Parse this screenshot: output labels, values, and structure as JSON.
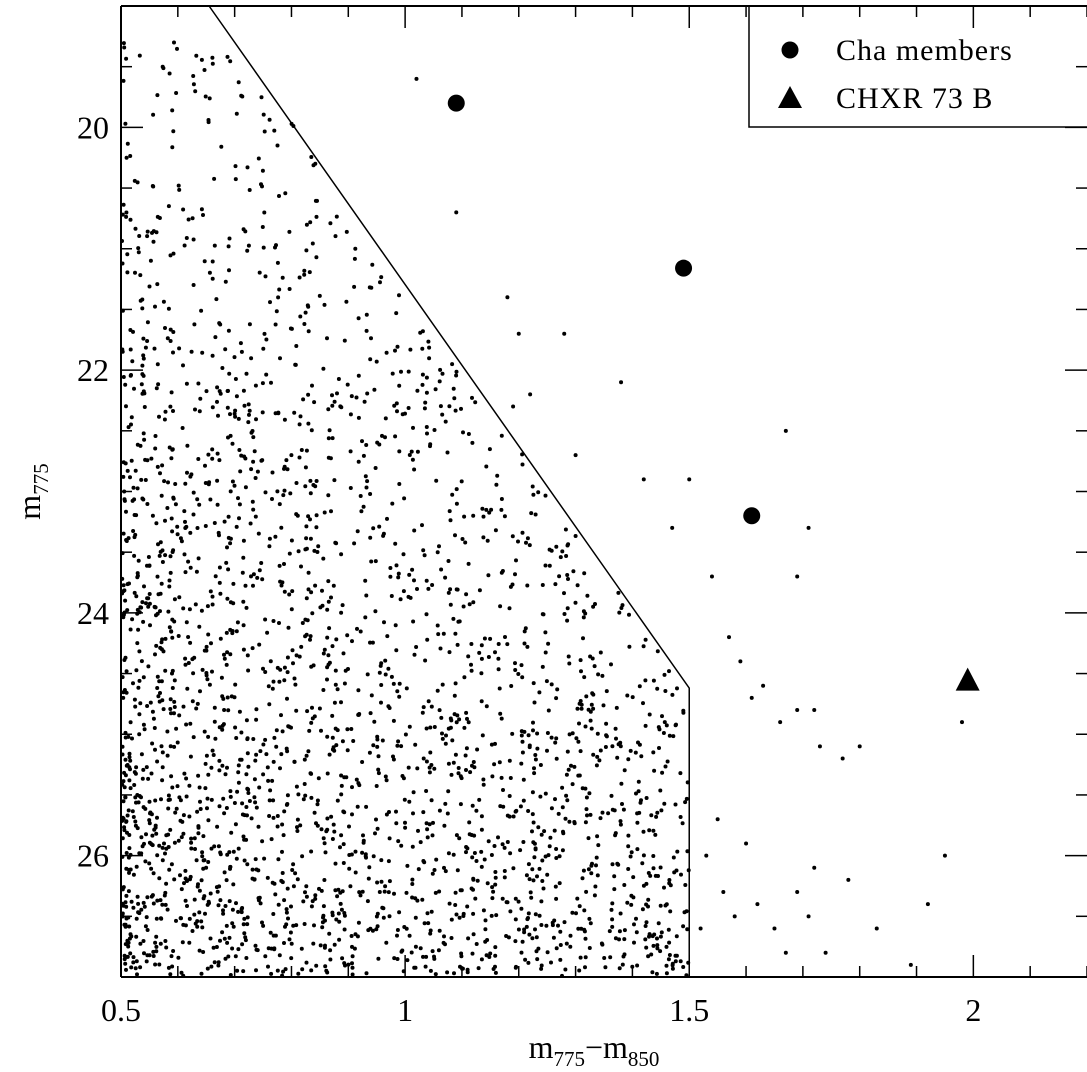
{
  "chart_data": {
    "type": "scatter",
    "xlabel": {
      "base": "m",
      "sub1": "775",
      "dash": "−",
      "sub2": "850"
    },
    "ylabel": {
      "base": "m",
      "sub": "775"
    },
    "xlim": [
      0.5,
      2.2
    ],
    "ylim": [
      19.0,
      27.0
    ],
    "y_inverted": true,
    "xticks": [
      0.5,
      1,
      1.5,
      2
    ],
    "xtick_labels": [
      "0.5",
      "1",
      "1.5",
      "2"
    ],
    "yticks": [
      20,
      22,
      24,
      26
    ],
    "ytick_labels": [
      "20",
      "22",
      "24",
      "26"
    ],
    "x_minor_step": 0.1,
    "y_minor_step": 0.5,
    "grid": false,
    "legend_position": "top-right",
    "legend": [
      {
        "label": "Cha members",
        "marker": "circle"
      },
      {
        "label": "CHXR 73 B",
        "marker": "triangle"
      }
    ],
    "selection_boundary": [
      [
        0.655,
        19.0
      ],
      [
        1.5,
        24.62
      ],
      [
        1.5,
        27.0
      ]
    ],
    "series": [
      {
        "name": "Cha members",
        "marker": "circle",
        "x": [
          1.09,
          1.49,
          1.61
        ],
        "y": [
          19.8,
          21.16,
          23.2
        ]
      },
      {
        "name": "CHXR 73 B",
        "marker": "triangle",
        "x": [
          1.99
        ],
        "y": [
          24.55
        ]
      }
    ],
    "field_sources": {
      "marker": "dot",
      "count": 2600,
      "x_range": [
        0.5,
        2.2
      ],
      "y_range": [
        19.3,
        27.0
      ],
      "x_distribution": "dense near 0.5-1.0, thinning to the red",
      "y_distribution": "dense at faint magnitudes 24-27",
      "outside_boundary_points": [
        [
          1.02,
          19.6
        ],
        [
          1.09,
          20.7
        ],
        [
          1.18,
          21.4
        ],
        [
          1.2,
          21.7
        ],
        [
          1.28,
          21.7
        ],
        [
          1.19,
          22.3
        ],
        [
          1.22,
          22.2
        ],
        [
          1.3,
          22.7
        ],
        [
          1.38,
          22.1
        ],
        [
          1.42,
          22.9
        ],
        [
          1.47,
          23.3
        ],
        [
          1.5,
          22.9
        ],
        [
          1.67,
          22.5
        ],
        [
          1.71,
          23.3
        ],
        [
          1.54,
          23.7
        ],
        [
          1.69,
          23.7
        ],
        [
          1.57,
          24.2
        ],
        [
          1.59,
          24.4
        ],
        [
          1.61,
          24.7
        ],
        [
          1.63,
          24.6
        ],
        [
          1.66,
          24.9
        ],
        [
          1.69,
          24.8
        ],
        [
          1.72,
          24.8
        ],
        [
          1.73,
          25.1
        ],
        [
          1.77,
          25.2
        ],
        [
          1.8,
          25.1
        ],
        [
          1.83,
          26.6
        ],
        [
          1.89,
          26.9
        ],
        [
          1.92,
          26.4
        ],
        [
          1.95,
          26.0
        ],
        [
          1.98,
          24.9
        ],
        [
          1.55,
          25.7
        ],
        [
          1.6,
          25.9
        ],
        [
          1.53,
          26.0
        ],
        [
          1.56,
          26.3
        ],
        [
          1.62,
          26.4
        ],
        [
          1.65,
          26.6
        ],
        [
          1.72,
          26.1
        ],
        [
          1.74,
          26.8
        ],
        [
          1.78,
          26.2
        ],
        [
          1.58,
          26.5
        ],
        [
          1.52,
          26.6
        ],
        [
          1.69,
          26.3
        ],
        [
          1.71,
          26.5
        ],
        [
          1.67,
          26.8
        ]
      ]
    }
  }
}
